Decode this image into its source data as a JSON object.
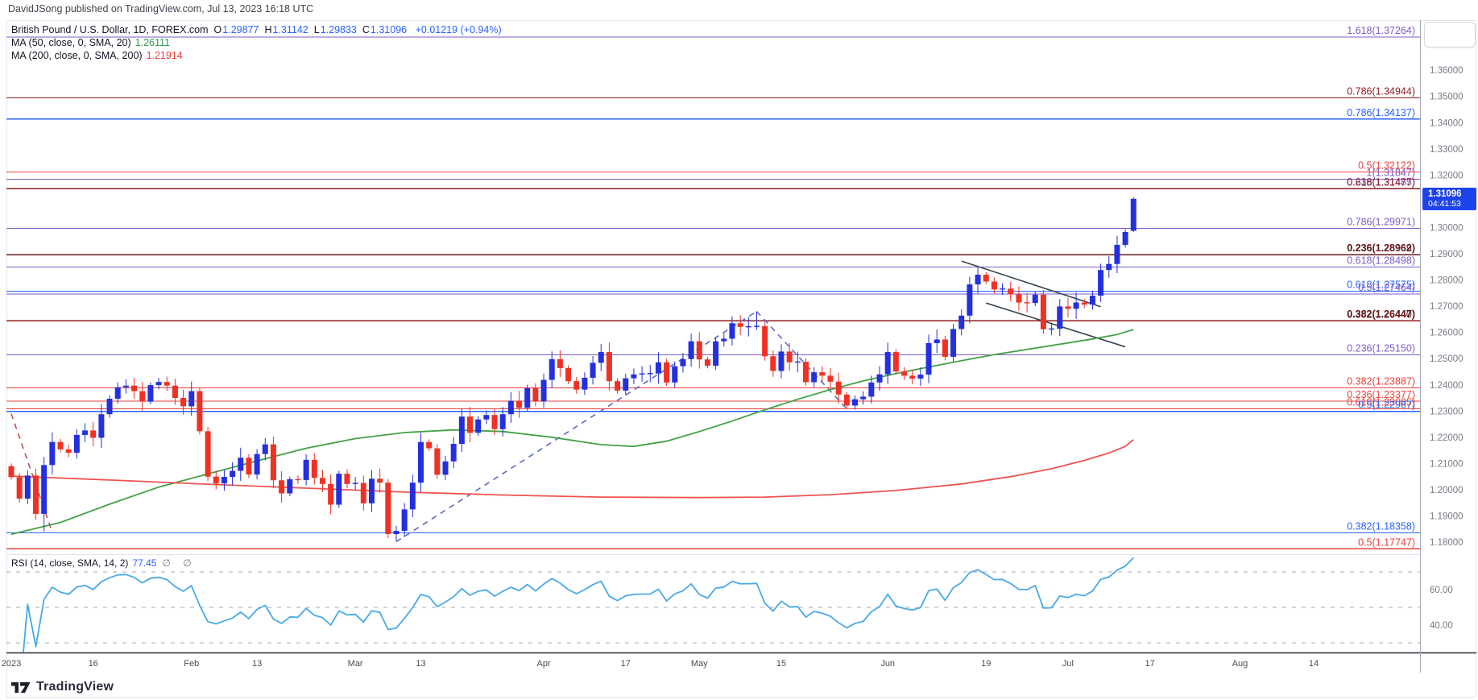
{
  "header": {
    "publish_line": "DavidJSong published on TradingView.com, Jul 13, 2023 16:18 UTC"
  },
  "legend": {
    "symbol_title": "British Pound / U.S. Dollar, 1D, FOREX.com",
    "ohlc": [
      {
        "k": "O",
        "v": "1.29877"
      },
      {
        "k": "H",
        "v": "1.31142"
      },
      {
        "k": "L",
        "v": "1.29833"
      },
      {
        "k": "C",
        "v": "1.31096"
      }
    ],
    "change": "+0.01219 (+0.94%)",
    "ma_fast_label": "MA (50, close, 0, SMA, 20)",
    "ma_fast_value": "1.26111",
    "ma_slow_label": "MA (200, close, 0, SMA, 200)",
    "ma_slow_value": "1.21914"
  },
  "price_badge": {
    "price": "1.31096",
    "countdown": "04:41:53",
    "bg": "#1d43ea"
  },
  "rsi_legend": {
    "label": "RSI (14, close, SMA, 14, 2)",
    "value": "77.45",
    "hidden_marks": "∅ ∅"
  },
  "watermark": {
    "text": "TradingView"
  },
  "time_axis": {
    "labels": [
      {
        "text": "2023",
        "bar": 0
      },
      {
        "text": "16",
        "bar": 10
      },
      {
        "text": "Feb",
        "bar": 22
      },
      {
        "text": "13",
        "bar": 30
      },
      {
        "text": "Mar",
        "bar": 42
      },
      {
        "text": "13",
        "bar": 50
      },
      {
        "text": "Apr",
        "bar": 65
      },
      {
        "text": "17",
        "bar": 75
      },
      {
        "text": "May",
        "bar": 84
      },
      {
        "text": "15",
        "bar": 94
      },
      {
        "text": "Jun",
        "bar": 107
      },
      {
        "text": "19",
        "bar": 119
      },
      {
        "text": "Jul",
        "bar": 129
      },
      {
        "text": "17",
        "bar": 139
      },
      {
        "text": "Aug",
        "bar": 150
      },
      {
        "text": "14",
        "bar": 159
      }
    ]
  },
  "chart_data": {
    "type": "candlestick",
    "title": "British Pound / U.S. Dollar, 1D, FOREX.com",
    "symbol": "GBP/USD",
    "timeframe": "1D",
    "grid": false,
    "legend_position": "top-left",
    "price_axis": {
      "min": 1.18,
      "max": 1.37,
      "step": 0.01,
      "format_decimals": 5
    },
    "bull_color": "#2430dd",
    "bear_color": "#ef3125",
    "first_open": 1.209,
    "closes": [
      1.2048,
      1.1966,
      1.2054,
      1.1908,
      1.2094,
      1.2182,
      1.2154,
      1.2141,
      1.2209,
      1.2226,
      1.2198,
      1.2288,
      1.2347,
      1.2391,
      1.2397,
      1.2376,
      1.2336,
      1.2399,
      1.2411,
      1.2397,
      1.235,
      1.2318,
      1.2376,
      1.2223,
      1.205,
      1.2024,
      1.2049,
      1.2072,
      1.2122,
      1.2058,
      1.2136,
      1.2173,
      1.2036,
      1.1986,
      1.204,
      1.2037,
      1.2114,
      1.2045,
      1.2022,
      1.1943,
      1.2061,
      1.2022,
      1.2026,
      1.1948,
      1.2042,
      1.2027,
      1.1831,
      1.1843,
      1.1925,
      1.2027,
      1.2182,
      1.2158,
      1.2057,
      1.2108,
      1.2175,
      1.2279,
      1.2217,
      1.2268,
      1.2285,
      1.2231,
      1.2288,
      1.2339,
      1.2312,
      1.2387,
      1.2337,
      1.2419,
      1.2498,
      1.2464,
      1.2414,
      1.2382,
      1.2427,
      1.2484,
      1.2525,
      1.2414,
      1.2378,
      1.2425,
      1.244,
      1.2443,
      1.2443,
      1.2486,
      1.2409,
      1.2471,
      1.2498,
      1.2566,
      1.2497,
      1.2473,
      1.2566,
      1.2576,
      1.2635,
      1.2621,
      1.2622,
      1.2624,
      1.2509,
      1.2453,
      1.2527,
      1.2486,
      1.2488,
      1.241,
      1.2448,
      1.2435,
      1.2412,
      1.2363,
      1.2321,
      1.2345,
      1.2355,
      1.2409,
      1.244,
      1.2525,
      1.2451,
      1.2435,
      1.2424,
      1.2439,
      1.2559,
      1.2573,
      1.2507,
      1.2613,
      1.2664,
      1.2783,
      1.282,
      1.2794,
      1.2764,
      1.2767,
      1.2745,
      1.2714,
      1.2712,
      1.2744,
      1.2612,
      1.2614,
      1.2699,
      1.269,
      1.2714,
      1.2706,
      1.274,
      1.2838,
      1.2861,
      1.2934,
      1.2983,
      1.31096
    ],
    "wick_overrides": {
      "3": {
        "low": 1.1885
      },
      "4": {
        "low": 1.1841
      },
      "46": {
        "low": 1.1815
      },
      "47": {
        "low": 1.1803
      },
      "91": {
        "high": 1.268
      },
      "118": {
        "high": 1.2848
      },
      "137": {
        "open": 1.29877,
        "high": 1.31142,
        "low": 1.29833,
        "close": 1.31096
      }
    },
    "fib_levels": [
      {
        "label": "1.618(1.37264)",
        "price": 1.37264,
        "color": "purple"
      },
      {
        "label": "0.786(1.34944)",
        "price": 1.34944,
        "color": "darkred"
      },
      {
        "label": "0.786(1.34137)",
        "price": 1.34137,
        "color": "blue"
      },
      {
        "label": "0.5(1.32122)",
        "price": 1.32122,
        "color": "red"
      },
      {
        "label": "1(1.31847)",
        "price": 1.31847,
        "color": "purple"
      },
      {
        "label": "0.236(1.31485)",
        "price": 1.31485,
        "color": "purple"
      },
      {
        "label": "0.618(1.31477)",
        "price": 1.31477,
        "color": "darkred"
      },
      {
        "label": "0.786(1.29971)",
        "price": 1.29971,
        "color": "purple"
      },
      {
        "label": "0.236(1.28962)",
        "price": 1.28962,
        "color": "black",
        "bold": true
      },
      {
        "label": "0.236(1.28969)",
        "price": 1.28969,
        "color": "darkred"
      },
      {
        "label": "0.618(1.28498)",
        "price": 1.28498,
        "color": "purple"
      },
      {
        "label": "0.618(1.27575)",
        "price": 1.27575,
        "color": "blue"
      },
      {
        "label": "0.5(1.27464)",
        "price": 1.27464,
        "color": "purple"
      },
      {
        "label": "0.382(1.26447)",
        "price": 1.26447,
        "color": "black",
        "bold": true
      },
      {
        "label": "0.382(1.26440)",
        "price": 1.2644,
        "color": "darkred"
      },
      {
        "label": "0.236(1.25150)",
        "price": 1.2515,
        "color": "purple"
      },
      {
        "label": "0.382(1.23887)",
        "price": 1.23887,
        "color": "red"
      },
      {
        "label": "0.236(1.23377)",
        "price": 1.23377,
        "color": "red"
      },
      {
        "label": "0.618(1.23085)",
        "price": 1.23085,
        "color": "red"
      },
      {
        "label": "0.5(1.22987)",
        "price": 1.22987,
        "color": "blue"
      },
      {
        "label": "0.382(1.18358)",
        "price": 1.18358,
        "color": "blue"
      },
      {
        "label": "0.5(1.17747)",
        "price": 1.17747,
        "color": "red"
      }
    ],
    "fib_colors": {
      "purple": "#7d5cc6",
      "darkred": "#8e1a1d",
      "red": "#e8423c",
      "blue": "#2962ff",
      "black": "#141414"
    },
    "ma_lines": [
      {
        "name": "SMA 50",
        "color": "#44a147",
        "last_value": 1.26111,
        "points": [
          [
            0,
            1.183
          ],
          [
            6,
            1.1875
          ],
          [
            12,
            1.1945
          ],
          [
            18,
            1.201
          ],
          [
            24,
            1.206
          ],
          [
            30,
            1.211
          ],
          [
            36,
            1.2158
          ],
          [
            42,
            1.2195
          ],
          [
            48,
            1.2218
          ],
          [
            54,
            1.2228
          ],
          [
            60,
            1.2222
          ],
          [
            66,
            1.22
          ],
          [
            72,
            1.2172
          ],
          [
            76,
            1.2165
          ],
          [
            80,
            1.2185
          ],
          [
            84,
            1.2222
          ],
          [
            88,
            1.2262
          ],
          [
            92,
            1.2305
          ],
          [
            96,
            1.2345
          ],
          [
            100,
            1.2382
          ],
          [
            104,
            1.2415
          ],
          [
            108,
            1.2443
          ],
          [
            112,
            1.2468
          ],
          [
            116,
            1.2492
          ],
          [
            120,
            1.2515
          ],
          [
            124,
            1.2535
          ],
          [
            128,
            1.2555
          ],
          [
            132,
            1.2575
          ],
          [
            135,
            1.2592
          ],
          [
            137,
            1.2611
          ]
        ]
      },
      {
        "name": "SMA 200",
        "color": "#ef5350",
        "last_value": 1.21914,
        "points": [
          [
            0,
            1.2052
          ],
          [
            12,
            1.2037
          ],
          [
            24,
            1.2021
          ],
          [
            36,
            1.2006
          ],
          [
            48,
            1.1991
          ],
          [
            60,
            1.198
          ],
          [
            72,
            1.1972
          ],
          [
            84,
            1.197
          ],
          [
            92,
            1.1972
          ],
          [
            100,
            1.1981
          ],
          [
            108,
            1.1997
          ],
          [
            116,
            1.2022
          ],
          [
            122,
            1.205
          ],
          [
            127,
            1.208
          ],
          [
            131,
            1.2112
          ],
          [
            134,
            1.214
          ],
          [
            136,
            1.2165
          ],
          [
            137,
            1.2191
          ]
        ]
      }
    ],
    "trendlines": [
      {
        "name": "jan-decline",
        "points": [
          [
            0,
            1.229
          ],
          [
            5,
            1.1838
          ]
        ],
        "color": "#c0504d",
        "dash": true
      },
      {
        "name": "wave-ab",
        "points": [
          [
            47,
            1.1802
          ],
          [
            91,
            1.268
          ]
        ],
        "color": "#5c6bc0",
        "dash": true
      },
      {
        "name": "wave-bc",
        "points": [
          [
            91,
            1.268
          ],
          [
            102,
            1.2308
          ]
        ],
        "color": "#5c6bc0",
        "dash": true
      },
      {
        "name": "flag-upper",
        "points": [
          [
            116,
            1.2872
          ],
          [
            133,
            1.2698
          ]
        ],
        "color": "#37474f",
        "dash": false
      },
      {
        "name": "flag-lower",
        "points": [
          [
            119,
            1.2712
          ],
          [
            136,
            1.2545
          ]
        ],
        "color": "#37474f",
        "dash": false
      }
    ],
    "rsi": {
      "name": "RSI (14, close, SMA, 14, 2)",
      "period": 14,
      "current_value": 77.45,
      "line_color": "#48a9e6",
      "dashed_levels": [
        70,
        50,
        30
      ],
      "axis_ticks": [
        {
          "value": 60,
          "label": "60.00"
        },
        {
          "value": 40,
          "label": "40.00"
        }
      ]
    }
  }
}
